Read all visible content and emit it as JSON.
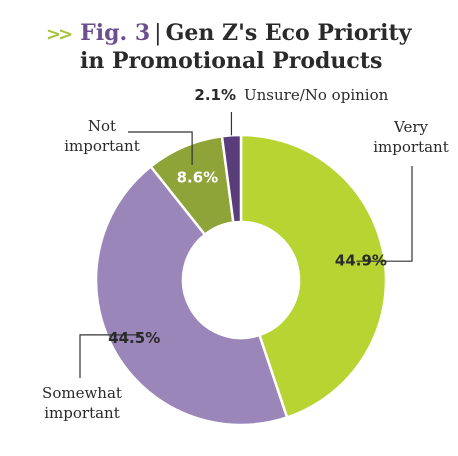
{
  "title": {
    "chevron": ">>",
    "fig": "Fig. 3",
    "separator": "|",
    "line1": "Gen Z's Eco Priority",
    "line2": "in Promotional Products"
  },
  "chart_data": {
    "type": "pie",
    "donut": true,
    "slices": [
      {
        "name": "Very important",
        "label_lines": [
          "Very",
          "important"
        ],
        "value": 44.9,
        "display": "44.9%",
        "color": "#b8d432"
      },
      {
        "name": "Somewhat important",
        "label_lines": [
          "Somewhat",
          "important"
        ],
        "value": 44.5,
        "display": "44.5%",
        "color": "#9b86b9"
      },
      {
        "name": "Not important",
        "label_lines": [
          "Not",
          "important"
        ],
        "value": 8.6,
        "display": "8.6%",
        "color": "#8ea338"
      },
      {
        "name": "Unsure/No opinion",
        "label_lines": [
          "Unsure/No opinion"
        ],
        "value": 2.1,
        "display": "2.1%",
        "color": "#5a3d7a"
      }
    ]
  }
}
